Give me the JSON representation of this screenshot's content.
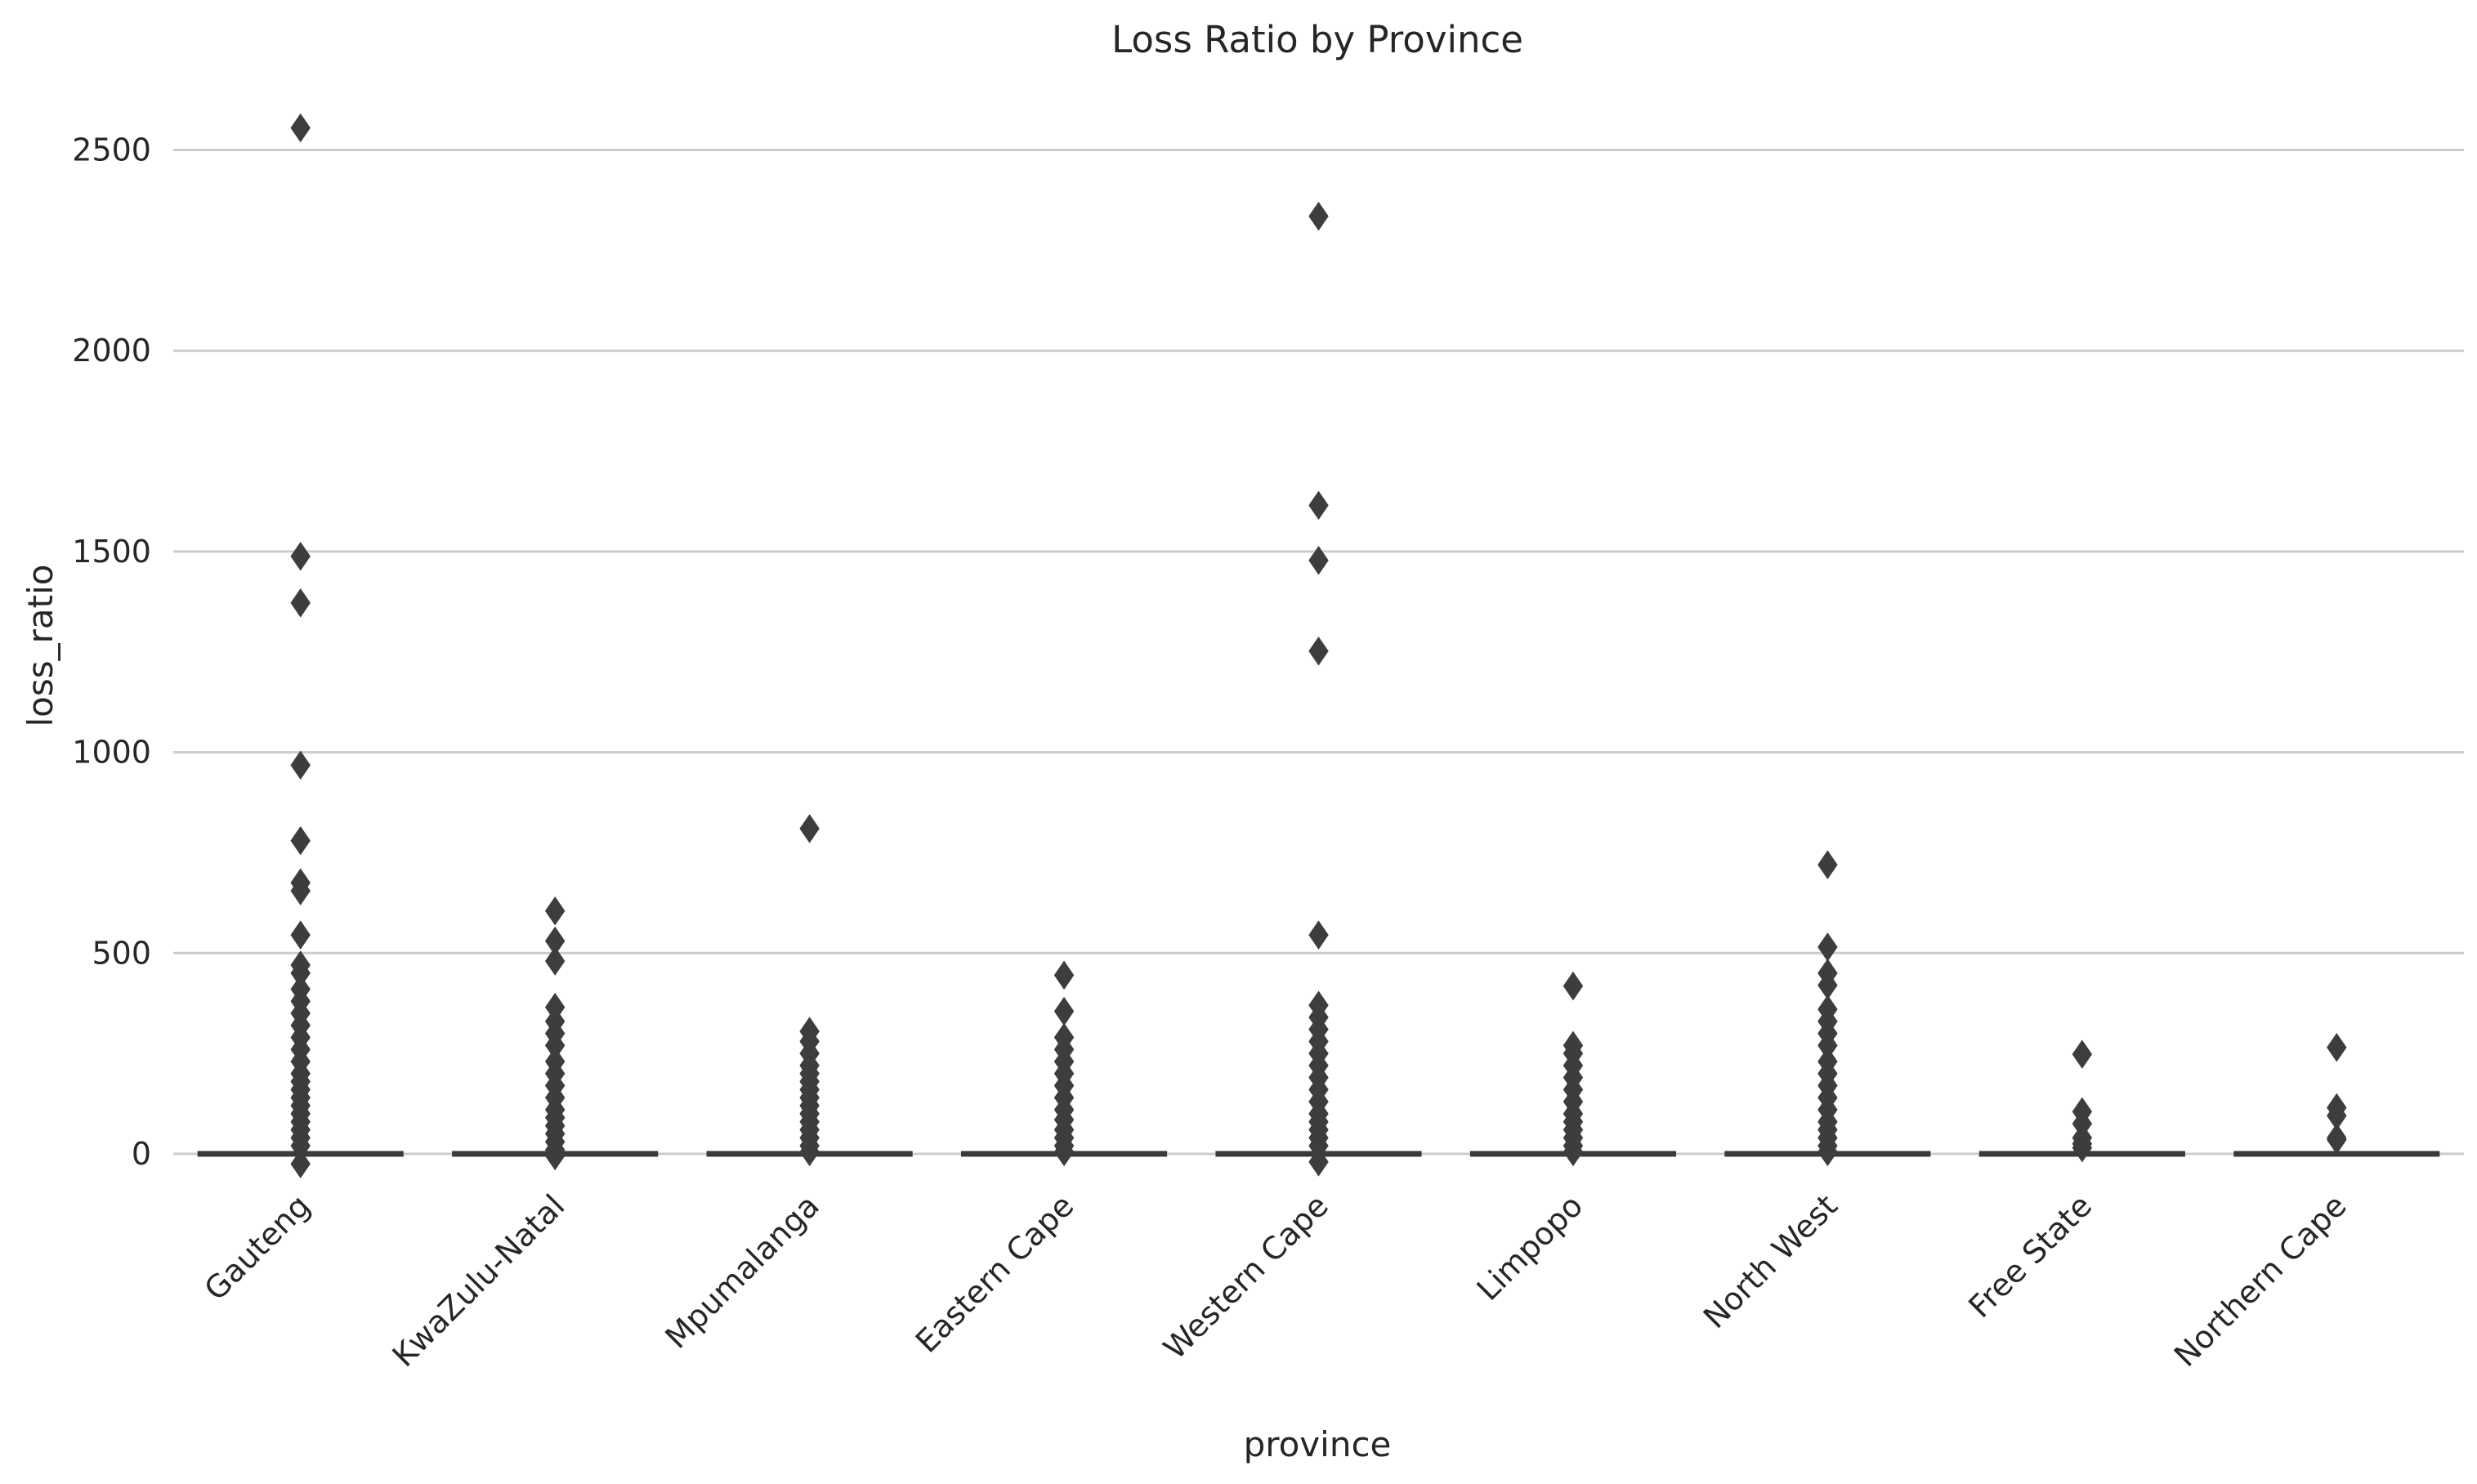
{
  "chart_data": {
    "type": "box",
    "title": "Loss Ratio by Province",
    "xlabel": "province",
    "ylabel": "loss_ratio",
    "ylim": [
      -90,
      2670
    ],
    "yticks": [
      0,
      500,
      1000,
      1500,
      2000,
      2500
    ],
    "grid": "horizontal",
    "categories": [
      "Gauteng",
      "KwaZulu-Natal",
      "Mpumalanga",
      "Eastern Cape",
      "Western Cape",
      "Limpopo",
      "North West",
      "Free State",
      "Northern Cape"
    ],
    "series": [
      {
        "category": "Gauteng",
        "q1": 0,
        "median": 0,
        "q3": 0,
        "whisker_low": 0,
        "whisker_high": 0,
        "outliers": [
          2555,
          1488,
          1372,
          968,
          780,
          675,
          655,
          545,
          470,
          450,
          410,
          380,
          350,
          320,
          290,
          260,
          230,
          200,
          180,
          160,
          140,
          120,
          100,
          80,
          60,
          40,
          20,
          -25
        ]
      },
      {
        "category": "KwaZulu-Natal",
        "q1": 0,
        "median": 0,
        "q3": 0,
        "whisker_low": 0,
        "whisker_high": 0,
        "outliers": [
          605,
          530,
          480,
          365,
          330,
          300,
          270,
          230,
          200,
          170,
          140,
          110,
          90,
          70,
          50,
          30,
          10,
          -5
        ]
      },
      {
        "category": "Mpumalanga",
        "q1": 0,
        "median": 0,
        "q3": 0,
        "whisker_low": 0,
        "whisker_high": 0,
        "outliers": [
          810,
          305,
          280,
          250,
          220,
          200,
          180,
          160,
          140,
          120,
          100,
          80,
          60,
          40,
          20,
          5
        ]
      },
      {
        "category": "Eastern Cape",
        "q1": 0,
        "median": 0,
        "q3": 0,
        "whisker_low": 0,
        "whisker_high": 0,
        "outliers": [
          445,
          355,
          290,
          260,
          230,
          200,
          170,
          140,
          110,
          85,
          60,
          40,
          20,
          5
        ]
      },
      {
        "category": "Western Cape",
        "q1": 0,
        "median": 0,
        "q3": 0,
        "whisker_low": 0,
        "whisker_high": 0,
        "outliers": [
          2335,
          1615,
          1478,
          1252,
          545,
          370,
          340,
          310,
          280,
          250,
          220,
          190,
          160,
          130,
          100,
          80,
          60,
          40,
          20,
          -20
        ]
      },
      {
        "category": "Limpopo",
        "q1": 0,
        "median": 0,
        "q3": 0,
        "whisker_low": 0,
        "whisker_high": 0,
        "outliers": [
          418,
          270,
          250,
          220,
          190,
          160,
          130,
          100,
          80,
          60,
          40,
          20,
          5
        ]
      },
      {
        "category": "North West",
        "q1": 0,
        "median": 0,
        "q3": 0,
        "whisker_low": 0,
        "whisker_high": 0,
        "outliers": [
          720,
          515,
          450,
          420,
          360,
          330,
          300,
          270,
          230,
          200,
          170,
          140,
          110,
          80,
          60,
          40,
          20,
          5
        ]
      },
      {
        "category": "Free State",
        "q1": 0,
        "median": 0,
        "q3": 0,
        "whisker_low": 0,
        "whisker_high": 0,
        "outliers": [
          248,
          105,
          75,
          40,
          25,
          15
        ]
      },
      {
        "category": "Northern Cape",
        "q1": 0,
        "median": 0,
        "q3": 0,
        "whisker_low": 0,
        "whisker_high": 0,
        "outliers": [
          265,
          115,
          95,
          40,
          35
        ]
      }
    ]
  }
}
